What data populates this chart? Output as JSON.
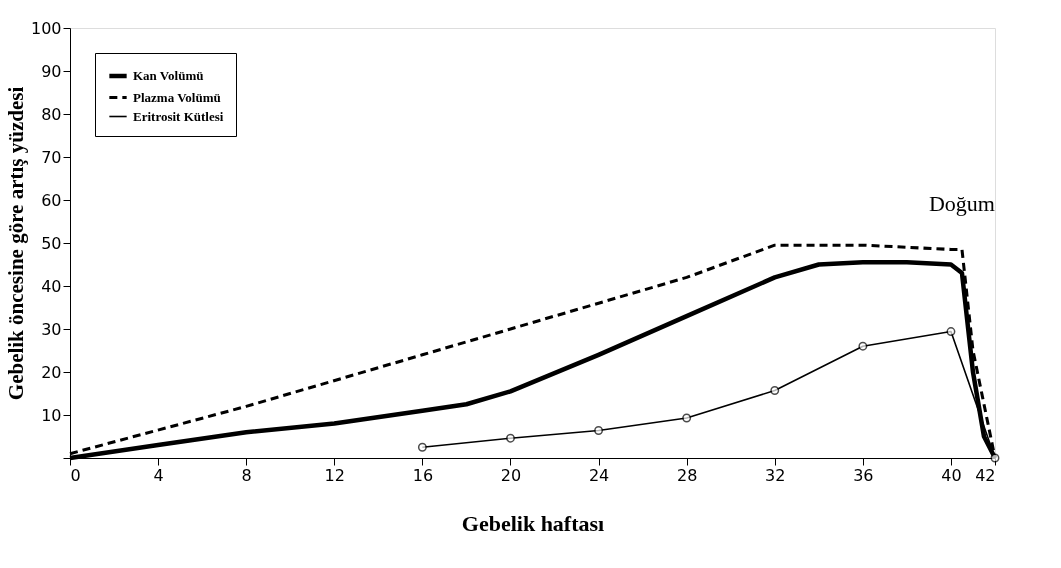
{
  "chart_data": {
    "type": "line",
    "xlabel": "Gebelik haftası",
    "ylabel": "Gebelik öncesine göre artış yüzdesi",
    "xlim": [
      0,
      42
    ],
    "xticks": [
      0,
      4,
      8,
      12,
      16,
      20,
      24,
      28,
      32,
      36,
      40,
      42
    ],
    "ylim": [
      0,
      100
    ],
    "yticks": [
      {
        "value": 0,
        "label": null
      },
      10,
      20,
      30,
      40,
      50,
      60,
      70,
      80,
      90,
      100
    ],
    "grid": false,
    "legend": "top left",
    "annotations": [
      {
        "text": "Doğum",
        "x": 40.5,
        "y": 48.5
      }
    ],
    "series": [
      {
        "name": "Kan Volümü",
        "color": "#000000",
        "line_style": "solid",
        "marker": "none",
        "x": [
          0,
          4,
          8,
          12,
          16,
          18,
          20,
          24,
          28,
          32,
          34,
          36,
          38,
          40,
          40.5,
          41,
          41.5,
          42
        ],
        "values": [
          0,
          3,
          6,
          8,
          11,
          12.5,
          15.5,
          24,
          33,
          42,
          45,
          45.5,
          45.5,
          45,
          43,
          20,
          5,
          0
        ]
      },
      {
        "name": "Plazma Volümü",
        "color": "#000000",
        "line_style": "dashed",
        "marker": "none",
        "x": [
          0,
          8,
          16,
          20,
          24,
          28,
          32,
          36,
          40,
          40.5,
          41,
          42
        ],
        "values": [
          1,
          12,
          24,
          30,
          36,
          42,
          49.5,
          49.5,
          48.5,
          48.5,
          25,
          0
        ]
      },
      {
        "name": "Eritrosit Kütlesi",
        "color": "#000000",
        "line_style": "solid",
        "marker": "circle",
        "x": [
          16,
          20,
          24,
          28,
          32,
          36,
          40,
          42
        ],
        "values": [
          2.5,
          4.6,
          6.4,
          9.3,
          15.7,
          26,
          29.4,
          0
        ]
      }
    ]
  }
}
